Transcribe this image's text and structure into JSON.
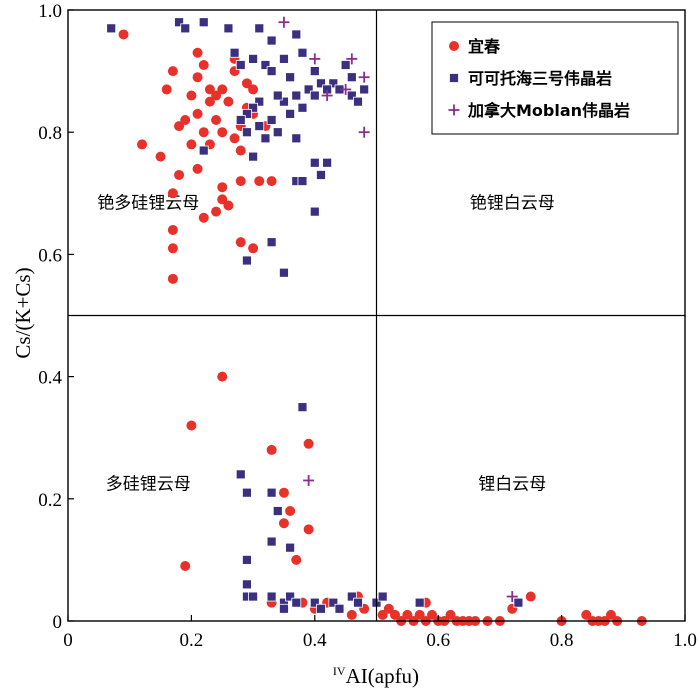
{
  "chart_data": {
    "type": "scatter",
    "title": "",
    "xlabel": {
      "sup": "IV",
      "text": "AI(apfu)"
    },
    "ylabel": "Cs/(K+Cs)",
    "xlim": [
      0,
      1.0
    ],
    "ylim": [
      0,
      1.0
    ],
    "x_ticks": [
      "0",
      "0.2",
      "0.4",
      "0.6",
      "0.8",
      "1.0"
    ],
    "y_ticks": [
      "0",
      "0.2",
      "0.4",
      "0.6",
      "0.8",
      "1.0"
    ],
    "grid": false,
    "legend_position": "top-right",
    "dividers": {
      "x": 0.5,
      "y": 0.5
    },
    "regions": [
      {
        "label": "铯多硅锂云母",
        "x": 0.13,
        "y": 0.675
      },
      {
        "label": "铯锂白云母",
        "x": 0.72,
        "y": 0.675
      },
      {
        "label": "多硅锂云母",
        "x": 0.13,
        "y": 0.215
      },
      {
        "label": "锂白云母",
        "x": 0.72,
        "y": 0.215
      }
    ],
    "series": [
      {
        "name": "宜春",
        "marker": "circle",
        "color": "#e8312b",
        "points": [
          [
            0.09,
            0.96
          ],
          [
            0.17,
            0.9
          ],
          [
            0.16,
            0.87
          ],
          [
            0.19,
            0.82
          ],
          [
            0.21,
            0.93
          ],
          [
            0.22,
            0.91
          ],
          [
            0.21,
            0.89
          ],
          [
            0.23,
            0.87
          ],
          [
            0.24,
            0.86
          ],
          [
            0.26,
            0.85
          ],
          [
            0.25,
            0.87
          ],
          [
            0.23,
            0.85
          ],
          [
            0.2,
            0.86
          ],
          [
            0.22,
            0.8
          ],
          [
            0.21,
            0.83
          ],
          [
            0.24,
            0.82
          ],
          [
            0.25,
            0.8
          ],
          [
            0.27,
            0.79
          ],
          [
            0.29,
            0.84
          ],
          [
            0.3,
            0.83
          ],
          [
            0.28,
            0.81
          ],
          [
            0.28,
            0.77
          ],
          [
            0.27,
            0.92
          ],
          [
            0.27,
            0.9
          ],
          [
            0.29,
            0.88
          ],
          [
            0.3,
            0.87
          ],
          [
            0.32,
            0.81
          ],
          [
            0.12,
            0.78
          ],
          [
            0.15,
            0.76
          ],
          [
            0.18,
            0.81
          ],
          [
            0.18,
            0.73
          ],
          [
            0.2,
            0.78
          ],
          [
            0.17,
            0.7
          ],
          [
            0.21,
            0.74
          ],
          [
            0.23,
            0.78
          ],
          [
            0.25,
            0.71
          ],
          [
            0.25,
            0.69
          ],
          [
            0.28,
            0.72
          ],
          [
            0.31,
            0.72
          ],
          [
            0.33,
            0.72
          ],
          [
            0.24,
            0.67
          ],
          [
            0.22,
            0.66
          ],
          [
            0.26,
            0.68
          ],
          [
            0.17,
            0.64
          ],
          [
            0.17,
            0.61
          ],
          [
            0.28,
            0.62
          ],
          [
            0.3,
            0.61
          ],
          [
            0.17,
            0.56
          ],
          [
            0.25,
            0.4
          ],
          [
            0.2,
            0.32
          ],
          [
            0.39,
            0.29
          ],
          [
            0.33,
            0.28
          ],
          [
            0.35,
            0.21
          ],
          [
            0.36,
            0.18
          ],
          [
            0.35,
            0.16
          ],
          [
            0.39,
            0.15
          ],
          [
            0.37,
            0.1
          ],
          [
            0.19,
            0.09
          ],
          [
            0.33,
            0.03
          ],
          [
            0.35,
            0.02
          ],
          [
            0.38,
            0.03
          ],
          [
            0.4,
            0.02
          ],
          [
            0.42,
            0.03
          ],
          [
            0.44,
            0.02
          ],
          [
            0.46,
            0.01
          ],
          [
            0.48,
            0.02
          ],
          [
            0.5,
            0.03
          ],
          [
            0.51,
            0.01
          ],
          [
            0.52,
            0.02
          ],
          [
            0.53,
            0.01
          ],
          [
            0.54,
            0.0
          ],
          [
            0.55,
            0.01
          ],
          [
            0.56,
            0.0
          ],
          [
            0.57,
            0.01
          ],
          [
            0.58,
            0.0
          ],
          [
            0.59,
            0.01
          ],
          [
            0.6,
            0.0
          ],
          [
            0.61,
            0.0
          ],
          [
            0.62,
            0.01
          ],
          [
            0.63,
            0.0
          ],
          [
            0.64,
            0.0
          ],
          [
            0.65,
            0.0
          ],
          [
            0.66,
            0.0
          ],
          [
            0.68,
            0.0
          ],
          [
            0.7,
            0.0
          ],
          [
            0.72,
            0.02
          ],
          [
            0.75,
            0.04
          ],
          [
            0.8,
            0.0
          ],
          [
            0.84,
            0.01
          ],
          [
            0.85,
            0.0
          ],
          [
            0.86,
            0.0
          ],
          [
            0.87,
            0.0
          ],
          [
            0.88,
            0.01
          ],
          [
            0.89,
            0.0
          ],
          [
            0.93,
            0.0
          ],
          [
            0.58,
            0.03
          ],
          [
            0.47,
            0.04
          ]
        ]
      },
      {
        "name": "可可托海三号伟晶岩",
        "marker": "square",
        "color": "#3b2f7f",
        "points": [
          [
            0.07,
            0.97
          ],
          [
            0.18,
            0.98
          ],
          [
            0.19,
            0.97
          ],
          [
            0.22,
            0.98
          ],
          [
            0.26,
            0.97
          ],
          [
            0.31,
            0.97
          ],
          [
            0.33,
            0.95
          ],
          [
            0.37,
            0.96
          ],
          [
            0.38,
            0.93
          ],
          [
            0.35,
            0.92
          ],
          [
            0.27,
            0.93
          ],
          [
            0.28,
            0.91
          ],
          [
            0.3,
            0.92
          ],
          [
            0.32,
            0.91
          ],
          [
            0.33,
            0.9
          ],
          [
            0.36,
            0.89
          ],
          [
            0.4,
            0.9
          ],
          [
            0.45,
            0.91
          ],
          [
            0.46,
            0.89
          ],
          [
            0.43,
            0.88
          ],
          [
            0.41,
            0.88
          ],
          [
            0.39,
            0.87
          ],
          [
            0.37,
            0.86
          ],
          [
            0.35,
            0.85
          ],
          [
            0.34,
            0.86
          ],
          [
            0.31,
            0.85
          ],
          [
            0.3,
            0.84
          ],
          [
            0.29,
            0.83
          ],
          [
            0.28,
            0.82
          ],
          [
            0.31,
            0.81
          ],
          [
            0.33,
            0.82
          ],
          [
            0.36,
            0.83
          ],
          [
            0.38,
            0.84
          ],
          [
            0.4,
            0.86
          ],
          [
            0.42,
            0.87
          ],
          [
            0.44,
            0.87
          ],
          [
            0.46,
            0.86
          ],
          [
            0.47,
            0.85
          ],
          [
            0.48,
            0.87
          ],
          [
            0.29,
            0.8
          ],
          [
            0.32,
            0.79
          ],
          [
            0.34,
            0.8
          ],
          [
            0.37,
            0.79
          ],
          [
            0.22,
            0.77
          ],
          [
            0.3,
            0.76
          ],
          [
            0.4,
            0.75
          ],
          [
            0.42,
            0.75
          ],
          [
            0.41,
            0.73
          ],
          [
            0.37,
            0.72
          ],
          [
            0.38,
            0.72
          ],
          [
            0.4,
            0.67
          ],
          [
            0.33,
            0.62
          ],
          [
            0.29,
            0.59
          ],
          [
            0.35,
            0.57
          ],
          [
            0.38,
            0.35
          ],
          [
            0.28,
            0.24
          ],
          [
            0.29,
            0.21
          ],
          [
            0.33,
            0.21
          ],
          [
            0.34,
            0.18
          ],
          [
            0.33,
            0.13
          ],
          [
            0.36,
            0.12
          ],
          [
            0.29,
            0.1
          ],
          [
            0.29,
            0.06
          ],
          [
            0.29,
            0.04
          ],
          [
            0.3,
            0.04
          ],
          [
            0.33,
            0.04
          ],
          [
            0.35,
            0.03
          ],
          [
            0.36,
            0.04
          ],
          [
            0.37,
            0.03
          ],
          [
            0.35,
            0.02
          ],
          [
            0.4,
            0.03
          ],
          [
            0.41,
            0.02
          ],
          [
            0.43,
            0.03
          ],
          [
            0.44,
            0.02
          ],
          [
            0.46,
            0.04
          ],
          [
            0.47,
            0.03
          ],
          [
            0.5,
            0.03
          ],
          [
            0.51,
            0.04
          ],
          [
            0.57,
            0.03
          ],
          [
            0.73,
            0.03
          ]
        ]
      },
      {
        "name": "加拿大Moblan伟晶岩",
        "marker": "plus",
        "color": "#8b2e8e",
        "points": [
          [
            0.35,
            0.98
          ],
          [
            0.4,
            0.92
          ],
          [
            0.46,
            0.92
          ],
          [
            0.48,
            0.89
          ],
          [
            0.45,
            0.87
          ],
          [
            0.42,
            0.86
          ],
          [
            0.48,
            0.8
          ],
          [
            0.39,
            0.23
          ],
          [
            0.72,
            0.04
          ]
        ]
      }
    ]
  }
}
